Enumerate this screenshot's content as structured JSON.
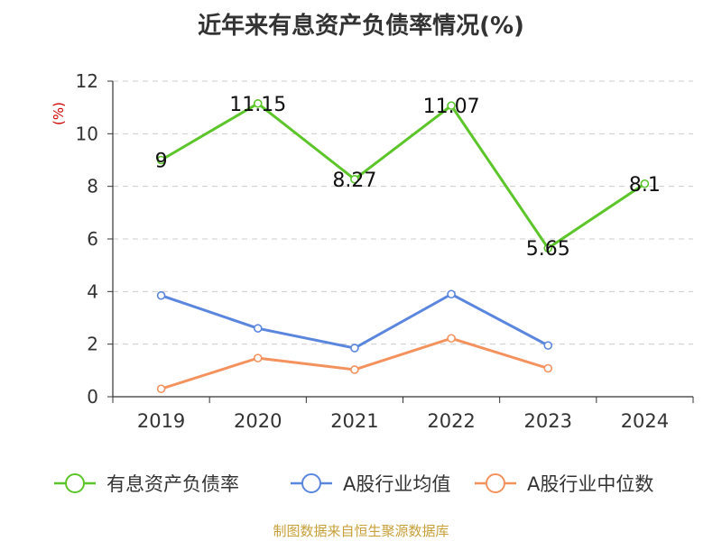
{
  "chart_data": {
    "type": "line",
    "title": "近年来有息资产负债率情况(%)",
    "ylabel": "(%)",
    "xlabel": "",
    "categories": [
      "2019",
      "2020",
      "2021",
      "2022",
      "2023",
      "2024"
    ],
    "ylim": [
      0,
      12
    ],
    "yticks": [
      0,
      2,
      4,
      6,
      8,
      10,
      12
    ],
    "grid": true,
    "legend_position": "bottom",
    "series": [
      {
        "name": "有息资产负债率",
        "color": "#5cc52a",
        "values": [
          9,
          11.15,
          8.27,
          11.07,
          5.65,
          8.1
        ],
        "show_labels": true
      },
      {
        "name": "A股行业均值",
        "color": "#5b86de",
        "values": [
          3.85,
          2.6,
          1.85,
          3.9,
          1.95,
          null
        ],
        "show_labels": false
      },
      {
        "name": "A股行业中位数",
        "color": "#f4925e",
        "values": [
          0.3,
          1.47,
          1.03,
          2.22,
          1.08,
          null
        ],
        "show_labels": false
      }
    ]
  },
  "source": "制图数据来自恒生聚源数据库",
  "colors": {
    "axis": "#333333",
    "grid": "#cccccc",
    "ylabel": "#cc0000"
  }
}
